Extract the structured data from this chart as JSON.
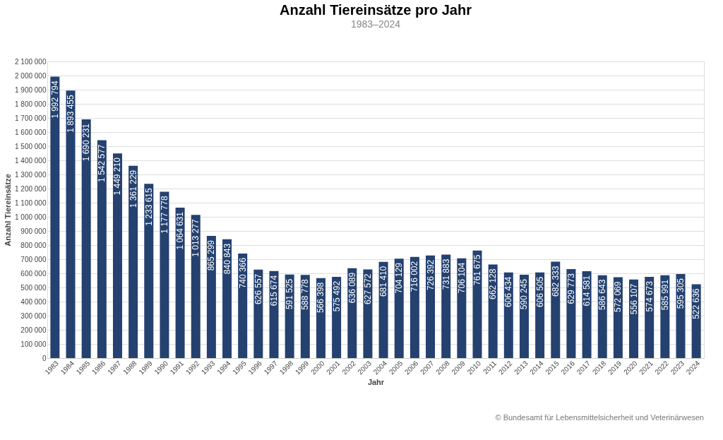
{
  "chart_data": {
    "type": "bar",
    "title": "Anzahl Tiereinsätze pro Jahr",
    "subtitle": "1983–2024",
    "xlabel": "Jahr",
    "ylabel": "Anzahl Tiereinsätze",
    "categories": [
      "1983",
      "1984",
      "1985",
      "1986",
      "1987",
      "1988",
      "1989",
      "1990",
      "1991",
      "1992",
      "1993",
      "1994",
      "1995",
      "1996",
      "1997",
      "1998",
      "1999",
      "2000",
      "2001",
      "2002",
      "2003",
      "2004",
      "2005",
      "2006",
      "2007",
      "2008",
      "2009",
      "2010",
      "2011",
      "2012",
      "2013",
      "2014",
      "2015",
      "2016",
      "2017",
      "2018",
      "2019",
      "2020",
      "2021",
      "2022",
      "2023",
      "2024"
    ],
    "values": [
      1992794,
      1893455,
      1690231,
      1542577,
      1449210,
      1361229,
      1233615,
      1177778,
      1064631,
      1013277,
      865299,
      840843,
      740366,
      626557,
      615674,
      591525,
      588778,
      566398,
      575492,
      636089,
      627572,
      681410,
      704129,
      716002,
      726392,
      731883,
      706104,
      761675,
      662128,
      606434,
      590245,
      606505,
      682333,
      629773,
      614581,
      586643,
      572069,
      556107,
      574673,
      585991,
      595305,
      522636
    ],
    "value_labels": [
      "1 992 794",
      "1 893 455",
      "1 690 231",
      "1 542 577",
      "1 449 210",
      "1 361 229",
      "1 233 615",
      "1 177 778",
      "1 064 631",
      "1 013 277",
      "865 299",
      "840 843",
      "740 366",
      "626 557",
      "615 674",
      "591 525",
      "588 778",
      "566 398",
      "575 492",
      "636 089",
      "627 572",
      "681 410",
      "704 129",
      "716 002",
      "726 392",
      "731 883",
      "706 104",
      "761 675",
      "662 128",
      "606 434",
      "590 245",
      "606 505",
      "682 333",
      "629 773",
      "614 581",
      "586 643",
      "572 069",
      "556 107",
      "574 673",
      "585 991",
      "595 305",
      "522 636"
    ],
    "color": "#24416f",
    "ylim": [
      0,
      2100000
    ],
    "yticks": [
      0,
      {
        "value": 100000,
        "label": "100 000"
      },
      {
        "value": 200000,
        "label": "200 000"
      },
      {
        "value": 300000,
        "label": "300 000"
      },
      {
        "value": 400000,
        "label": "400 000"
      },
      {
        "value": 500000,
        "label": "500 000"
      },
      {
        "value": 600000,
        "label": "600 000"
      },
      {
        "value": 700000,
        "label": "700 000"
      },
      {
        "value": 800000,
        "label": "800 000"
      },
      {
        "value": 900000,
        "label": "900 000"
      },
      {
        "value": 1000000,
        "label": "1 000 000"
      },
      {
        "value": 1100000,
        "label": "1 100 000"
      },
      {
        "value": 1200000,
        "label": "1 200 000"
      },
      {
        "value": 1300000,
        "label": "1 300 000"
      },
      {
        "value": 1400000,
        "label": "1 400 000"
      },
      {
        "value": 1500000,
        "label": "1 500 000"
      },
      {
        "value": 1600000,
        "label": "1 600 000"
      },
      {
        "value": 1700000,
        "label": "1 700 000"
      },
      {
        "value": 1800000,
        "label": "1 800 000"
      },
      {
        "value": 1900000,
        "label": "1 900 000"
      },
      {
        "value": 2000000,
        "label": "2 000 000"
      },
      {
        "value": 2100000,
        "label": "2 100 000"
      }
    ],
    "grid": "y",
    "annotations": [
      "© Bundesamt für Lebensmittelsicherheit und Veterinärwesen"
    ]
  }
}
